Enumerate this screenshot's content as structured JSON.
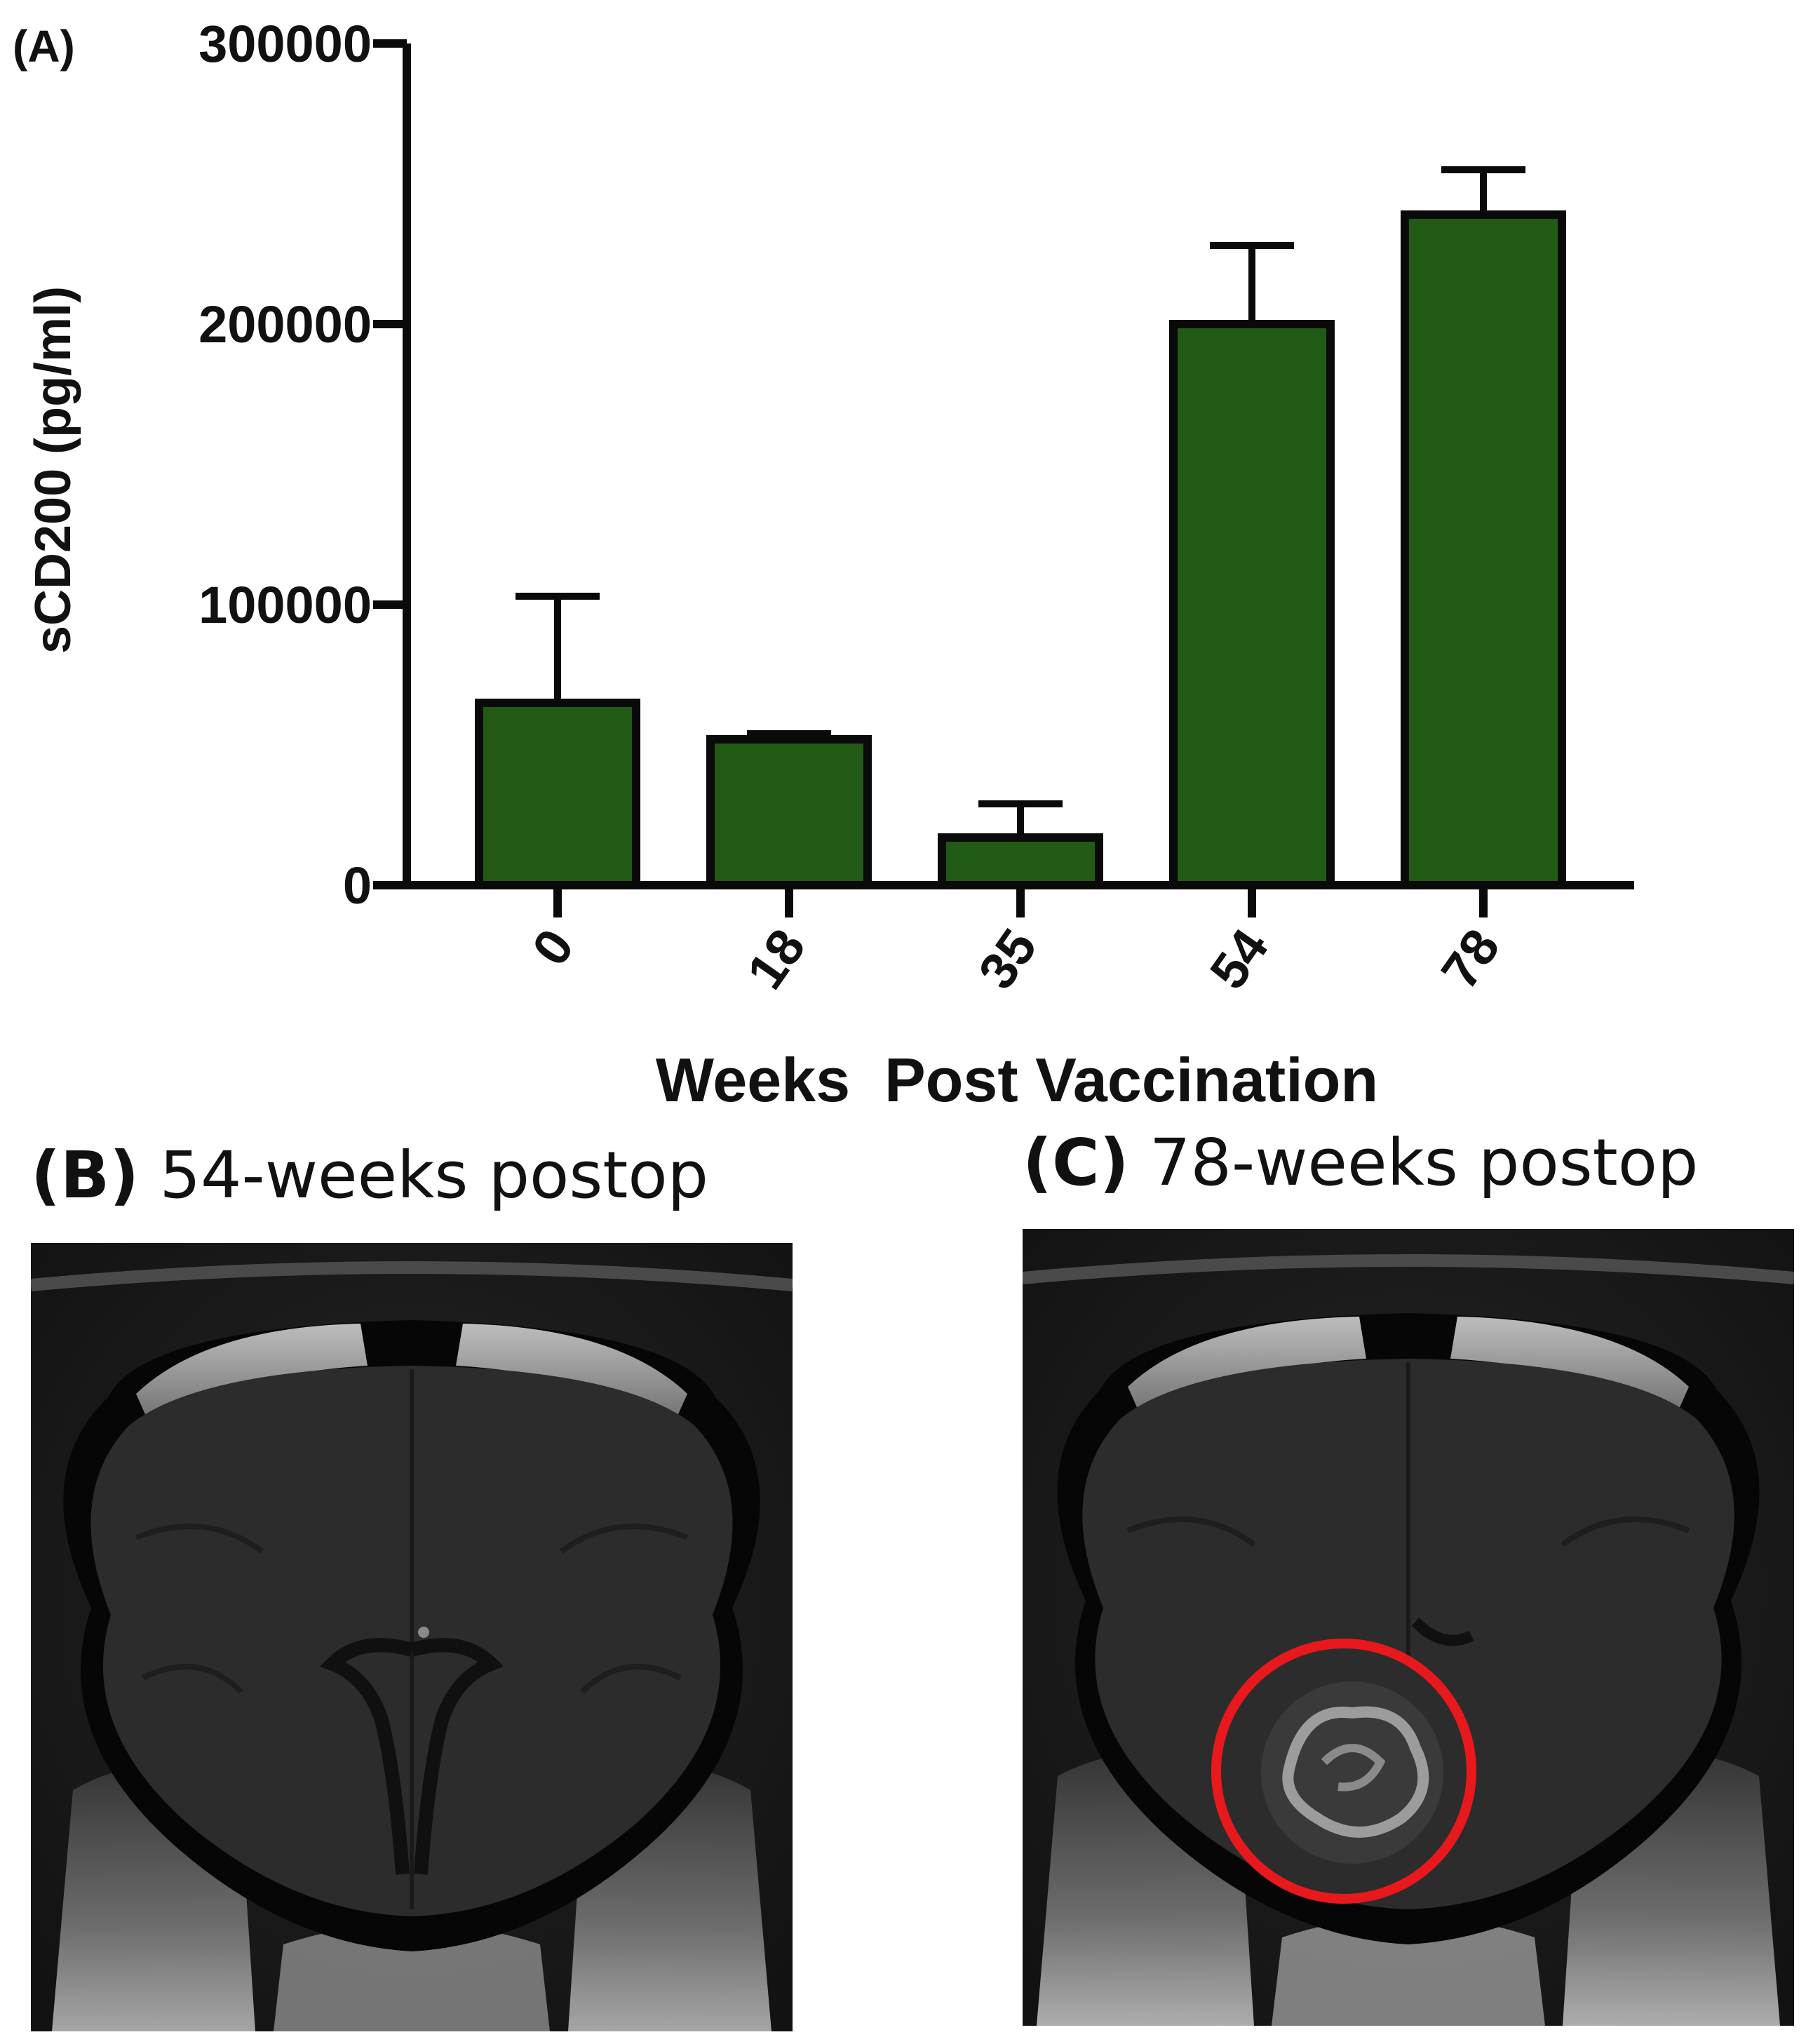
{
  "chart_data": {
    "type": "bar",
    "panel_label": "(A)",
    "categories": [
      "0",
      "18",
      "35",
      "54",
      "78"
    ],
    "values": [
      65000,
      52000,
      17000,
      200000,
      239000
    ],
    "error_upper": [
      103000,
      54000,
      29000,
      228000,
      255000
    ],
    "xlabel": "Weeks  Post Vaccination",
    "ylabel": "sCD200 (pg/ml)",
    "ylim": [
      0,
      300000
    ],
    "yticks": [
      {
        "value": 0,
        "label": "0"
      },
      {
        "value": 100000,
        "label": "100000"
      },
      {
        "value": 200000,
        "label": "200000"
      },
      {
        "value": 300000,
        "label": "300000"
      }
    ],
    "bar_color": "#215a14",
    "bar_edge_color": "#0a0a0a",
    "grid": false
  },
  "panels": {
    "b": {
      "letter": "(B)",
      "caption": "54-weeks postop",
      "icon": "mri-brain-scan"
    },
    "c": {
      "letter": "(C)",
      "caption": "78-weeks postop",
      "icon": "mri-brain-scan-with-lesion",
      "annotation_color": "#e8191c"
    }
  }
}
